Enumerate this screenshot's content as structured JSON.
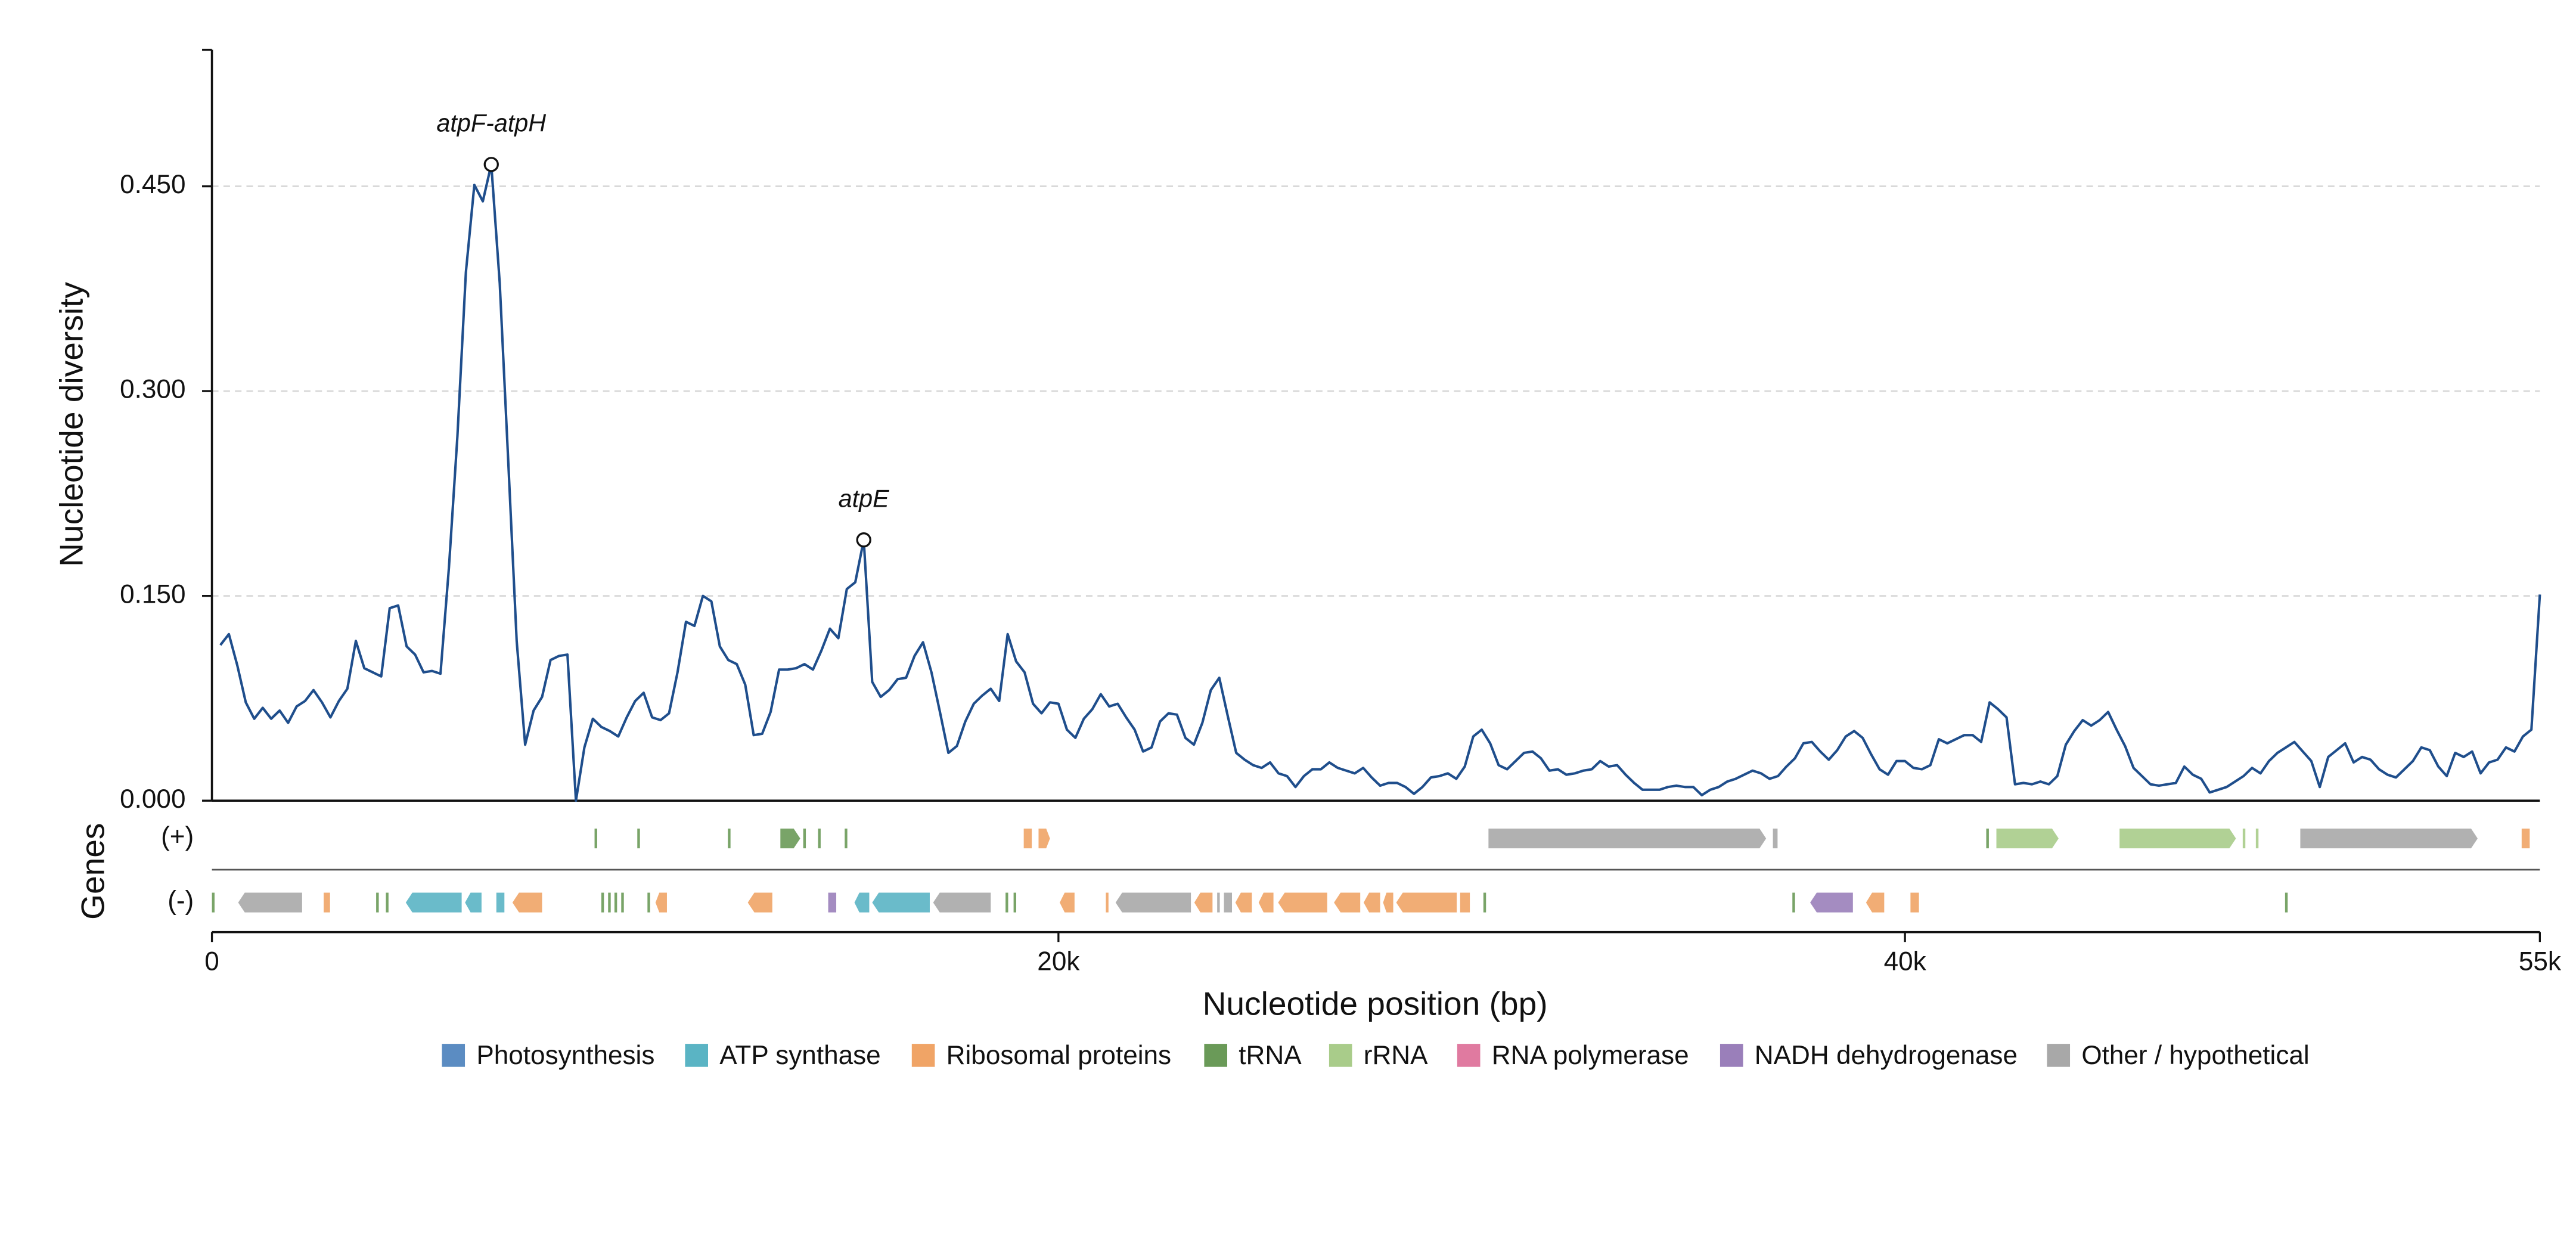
{
  "chart_data": {
    "type": "line",
    "ylabel": "Nucleotide diversity",
    "xlabel": "Nucleotide position (bp)",
    "track_label": "Genes",
    "color": "#1f4e8c",
    "xlim": [
      0,
      55000
    ],
    "ylim": [
      0,
      0.55
    ],
    "xticks": [
      0,
      {
        "value": 20000,
        "label": "20k"
      },
      {
        "value": 40000,
        "label": "40k"
      },
      {
        "value": 55000,
        "label": "55k"
      }
    ],
    "yticks": [
      {
        "value": 0,
        "label": "0.000"
      },
      {
        "value": 0.15,
        "label": "0.150"
      },
      {
        "value": 0.3,
        "label": "0.300"
      },
      {
        "value": 0.45,
        "label": "0.450"
      }
    ],
    "grid": true,
    "x": [
      200,
      400,
      600,
      800,
      1000,
      1200,
      1400,
      1600,
      1800,
      2000,
      2200,
      2400,
      2600,
      2800,
      3000,
      3200,
      3400,
      3600,
      3800,
      4000,
      4200,
      4400,
      4600,
      4800,
      5000,
      5200,
      5400,
      5600,
      5800,
      6000,
      6200,
      6400,
      6600,
      6800,
      7000,
      7200,
      7400,
      7600,
      7800,
      8000,
      8200,
      8400,
      8600,
      8800,
      9000,
      9200,
      9400,
      9600,
      9800,
      10000,
      10200,
      10400,
      10600,
      10800,
      11000,
      11200,
      11400,
      11600,
      11800,
      12000,
      12200,
      12400,
      12600,
      12800,
      13000,
      13200,
      13400,
      13600,
      13800,
      14000,
      14200,
      14400,
      14600,
      14800,
      15000,
      15200,
      15400,
      15600,
      15800,
      16000,
      16200,
      16400,
      16600,
      16800,
      17000,
      17200,
      17400,
      17600,
      17800,
      18000,
      18200,
      18400,
      18600,
      18800,
      19000,
      19200,
      19400,
      19600,
      19800,
      20000,
      20200,
      20400,
      20600,
      20800,
      21000,
      21200,
      21400,
      21600,
      21800,
      22000,
      22200,
      22400,
      22600,
      22800,
      23000,
      23200,
      23400,
      23600,
      23800,
      24000,
      24200,
      24400,
      24600,
      24800,
      25000,
      25200,
      25400,
      25600,
      25800,
      26000,
      26200,
      26400,
      26600,
      26800,
      27000,
      27200,
      27400,
      27600,
      27800,
      28000,
      28200,
      28400,
      28600,
      28800,
      29000,
      29200,
      29400,
      29600,
      29800,
      30000,
      30200,
      30400,
      30600,
      30800,
      31000,
      31200,
      31400,
      31600,
      31800,
      32000,
      32200,
      32400,
      32600,
      32800,
      33000,
      33200,
      33400,
      33600,
      33800,
      34000,
      34200,
      34400,
      34600,
      34800,
      35000,
      35200,
      35400,
      35600,
      35800,
      36000,
      36200,
      36400,
      36600,
      36800,
      37000,
      37200,
      37400,
      37600,
      37800,
      38000,
      38200,
      38400,
      38600,
      38800,
      39000,
      39200,
      39400,
      39600,
      39800,
      40000,
      40200,
      40400,
      40600,
      40800,
      41000,
      41200,
      41400,
      41600,
      41800,
      42000,
      42200,
      42400,
      42600,
      42800,
      43000,
      43200,
      43400,
      43600,
      43800,
      44000,
      44200,
      44400,
      44600,
      44800,
      45000,
      45200,
      45400,
      45600,
      45800,
      46000,
      46200,
      46400,
      46600,
      46800,
      47000,
      47200,
      47400,
      47600,
      47800,
      48000,
      48200,
      48400,
      48600,
      48800,
      49000,
      49200,
      49400,
      49600,
      49800,
      50000,
      50200,
      50400,
      50600,
      50800,
      51000,
      51200,
      51400,
      51600,
      51800,
      52000,
      52200,
      52400,
      52600,
      52800,
      53000,
      53200,
      53400,
      53600,
      53800,
      54000,
      54200,
      54400,
      54600,
      54800,
      55000
    ],
    "values": [
      0.114,
      0.122,
      0.099,
      0.072,
      0.06,
      0.068,
      0.06,
      0.066,
      0.057,
      0.069,
      0.073,
      0.081,
      0.072,
      0.061,
      0.073,
      0.082,
      0.117,
      0.097,
      0.094,
      0.091,
      0.141,
      0.143,
      0.113,
      0.107,
      0.094,
      0.095,
      0.093,
      0.171,
      0.267,
      0.387,
      0.451,
      0.439,
      0.466,
      0.379,
      0.249,
      0.117,
      0.041,
      0.066,
      0.076,
      0.103,
      0.106,
      0.107,
      0.0,
      0.039,
      0.06,
      0.054,
      0.051,
      0.047,
      0.061,
      0.073,
      0.079,
      0.061,
      0.059,
      0.064,
      0.094,
      0.131,
      0.128,
      0.15,
      0.146,
      0.113,
      0.103,
      0.1,
      0.085,
      0.048,
      0.049,
      0.065,
      0.096,
      0.096,
      0.097,
      0.1,
      0.096,
      0.11,
      0.126,
      0.119,
      0.155,
      0.16,
      0.191,
      0.087,
      0.076,
      0.081,
      0.089,
      0.09,
      0.106,
      0.116,
      0.094,
      0.065,
      0.035,
      0.04,
      0.058,
      0.071,
      0.077,
      0.082,
      0.073,
      0.122,
      0.102,
      0.094,
      0.071,
      0.064,
      0.072,
      0.071,
      0.052,
      0.046,
      0.06,
      0.067,
      0.078,
      0.069,
      0.071,
      0.061,
      0.052,
      0.036,
      0.039,
      0.058,
      0.064,
      0.063,
      0.046,
      0.041,
      0.057,
      0.081,
      0.09,
      0.062,
      0.035,
      0.03,
      0.026,
      0.024,
      0.028,
      0.02,
      0.018,
      0.01,
      0.018,
      0.023,
      0.023,
      0.028,
      0.024,
      0.022,
      0.02,
      0.024,
      0.017,
      0.011,
      0.013,
      0.013,
      0.01,
      0.005,
      0.01,
      0.017,
      0.018,
      0.02,
      0.016,
      0.025,
      0.047,
      0.052,
      0.042,
      0.026,
      0.023,
      0.029,
      0.035,
      0.036,
      0.031,
      0.022,
      0.023,
      0.019,
      0.02,
      0.022,
      0.023,
      0.029,
      0.025,
      0.026,
      0.019,
      0.013,
      0.008,
      0.008,
      0.008,
      0.01,
      0.011,
      0.01,
      0.01,
      0.004,
      0.008,
      0.01,
      0.014,
      0.016,
      0.019,
      0.022,
      0.02,
      0.016,
      0.018,
      0.025,
      0.031,
      0.042,
      0.043,
      0.036,
      0.03,
      0.037,
      0.047,
      0.051,
      0.046,
      0.034,
      0.023,
      0.019,
      0.029,
      0.029,
      0.024,
      0.023,
      0.026,
      0.045,
      0.042,
      0.045,
      0.048,
      0.048,
      0.043,
      0.072,
      0.067,
      0.061,
      0.012,
      0.013,
      0.012,
      0.014,
      0.012,
      0.018,
      0.041,
      0.051,
      0.059,
      0.055,
      0.059,
      0.065,
      0.052,
      0.04,
      0.024,
      0.018,
      0.012,
      0.011,
      0.012,
      0.013,
      0.025,
      0.019,
      0.016,
      0.006,
      0.008,
      0.01,
      0.014,
      0.018,
      0.024,
      0.02,
      0.029,
      0.035,
      0.039,
      0.043,
      0.036,
      0.029,
      0.01,
      0.032,
      0.037,
      0.042,
      0.028,
      0.032,
      0.03,
      0.023,
      0.019,
      0.017,
      0.023,
      0.029,
      0.039,
      0.037,
      0.025,
      0.018,
      0.035,
      0.032,
      0.036,
      0.02,
      0.028,
      0.03,
      0.039,
      0.036,
      0.047,
      0.052,
      0.151
    ],
    "annotations": [
      {
        "text": "atpF-atpH",
        "x": 6600,
        "y": 0.466
      },
      {
        "text": "atpE",
        "x": 15400,
        "y": 0.191
      }
    ],
    "strands": [
      "(+)",
      "(-)"
    ],
    "legend": [
      {
        "name": "Photosynthesis",
        "color": "#5b8cc2"
      },
      {
        "name": "ATP synthase",
        "color": "#5ab4c4"
      },
      {
        "name": "Ribosomal proteins",
        "color": "#f0a466"
      },
      {
        "name": "tRNA",
        "color": "#6a9a58"
      },
      {
        "name": "rRNA",
        "color": "#a9cc8a"
      },
      {
        "name": "RNA polymerase",
        "color": "#e07aa0"
      },
      {
        "name": "NADH dehydrogenase",
        "color": "#9a7fba"
      },
      {
        "name": "Other / hypothetical",
        "color": "#a8a8a8"
      }
    ],
    "genes": [
      {
        "start": 9040,
        "end": 9100,
        "strand": "(+)",
        "category": "tRNA"
      },
      {
        "start": 10050,
        "end": 10110,
        "strand": "(+)",
        "category": "tRNA"
      },
      {
        "start": 12190,
        "end": 12250,
        "strand": "(+)",
        "category": "tRNA"
      },
      {
        "start": 13430,
        "end": 13900,
        "strand": "(+)",
        "category": "tRNA"
      },
      {
        "start": 13970,
        "end": 14030,
        "strand": "(+)",
        "category": "tRNA"
      },
      {
        "start": 14320,
        "end": 14380,
        "strand": "(+)",
        "category": "tRNA"
      },
      {
        "start": 14950,
        "end": 15010,
        "strand": "(+)",
        "category": "tRNA"
      },
      {
        "start": 19180,
        "end": 19370,
        "strand": "(+)",
        "category": "Ribosomal proteins"
      },
      {
        "start": 19530,
        "end": 19800,
        "strand": "(+)",
        "category": "Ribosomal proteins"
      },
      {
        "start": 30160,
        "end": 36720,
        "strand": "(+)",
        "category": "Other / hypothetical"
      },
      {
        "start": 36880,
        "end": 36990,
        "strand": "(+)",
        "category": "Other / hypothetical"
      },
      {
        "start": 41920,
        "end": 41980,
        "strand": "(+)",
        "category": "tRNA"
      },
      {
        "start": 42160,
        "end": 43630,
        "strand": "(+)",
        "category": "rRNA"
      },
      {
        "start": 45070,
        "end": 47820,
        "strand": "(+)",
        "category": "rRNA"
      },
      {
        "start": 47980,
        "end": 48040,
        "strand": "(+)",
        "category": "rRNA"
      },
      {
        "start": 48290,
        "end": 48350,
        "strand": "(+)",
        "category": "rRNA"
      },
      {
        "start": 49340,
        "end": 53530,
        "strand": "(+)",
        "category": "Other / hypothetical"
      },
      {
        "start": 54570,
        "end": 54760,
        "strand": "(+)",
        "category": "Ribosomal proteins"
      },
      {
        "start": 0,
        "end": 60,
        "strand": "(-)",
        "category": "tRNA"
      },
      {
        "start": 620,
        "end": 2130,
        "strand": "(-)",
        "category": "Other / hypothetical"
      },
      {
        "start": 2640,
        "end": 2790,
        "strand": "(-)",
        "category": "Ribosomal proteins"
      },
      {
        "start": 3880,
        "end": 3940,
        "strand": "(-)",
        "category": "tRNA"
      },
      {
        "start": 4110,
        "end": 4170,
        "strand": "(-)",
        "category": "tRNA"
      },
      {
        "start": 4580,
        "end": 5900,
        "strand": "(-)",
        "category": "ATP synthase"
      },
      {
        "start": 5980,
        "end": 6370,
        "strand": "(-)",
        "category": "ATP synthase"
      },
      {
        "start": 6720,
        "end": 6910,
        "strand": "(-)",
        "category": "ATP synthase"
      },
      {
        "start": 7100,
        "end": 7800,
        "strand": "(-)",
        "category": "Ribosomal proteins"
      },
      {
        "start": 9200,
        "end": 9260,
        "strand": "(-)",
        "category": "tRNA"
      },
      {
        "start": 9360,
        "end": 9420,
        "strand": "(-)",
        "category": "tRNA"
      },
      {
        "start": 9510,
        "end": 9570,
        "strand": "(-)",
        "category": "tRNA"
      },
      {
        "start": 9670,
        "end": 9730,
        "strand": "(-)",
        "category": "tRNA"
      },
      {
        "start": 10290,
        "end": 10350,
        "strand": "(-)",
        "category": "tRNA"
      },
      {
        "start": 10480,
        "end": 10750,
        "strand": "(-)",
        "category": "Ribosomal proteins"
      },
      {
        "start": 12660,
        "end": 13240,
        "strand": "(-)",
        "category": "Ribosomal proteins"
      },
      {
        "start": 14560,
        "end": 14750,
        "strand": "(-)",
        "category": "NADH dehydrogenase"
      },
      {
        "start": 15180,
        "end": 15530,
        "strand": "(-)",
        "category": "ATP synthase"
      },
      {
        "start": 15600,
        "end": 16960,
        "strand": "(-)",
        "category": "ATP synthase"
      },
      {
        "start": 17040,
        "end": 18400,
        "strand": "(-)",
        "category": "Other / hypothetical"
      },
      {
        "start": 18750,
        "end": 18810,
        "strand": "(-)",
        "category": "tRNA"
      },
      {
        "start": 18940,
        "end": 19000,
        "strand": "(-)",
        "category": "tRNA"
      },
      {
        "start": 20030,
        "end": 20380,
        "strand": "(-)",
        "category": "Ribosomal proteins"
      },
      {
        "start": 21120,
        "end": 21180,
        "strand": "(-)",
        "category": "Ribosomal proteins"
      },
      {
        "start": 21350,
        "end": 23130,
        "strand": "(-)",
        "category": "Other / hypothetical"
      },
      {
        "start": 23210,
        "end": 23640,
        "strand": "(-)",
        "category": "Ribosomal proteins"
      },
      {
        "start": 23750,
        "end": 23810,
        "strand": "(-)",
        "category": "Other / hypothetical"
      },
      {
        "start": 23910,
        "end": 24100,
        "strand": "(-)",
        "category": "Other / hypothetical"
      },
      {
        "start": 24180,
        "end": 24570,
        "strand": "(-)",
        "category": "Ribosomal proteins"
      },
      {
        "start": 24730,
        "end": 25080,
        "strand": "(-)",
        "category": "Ribosomal proteins"
      },
      {
        "start": 25190,
        "end": 26350,
        "strand": "(-)",
        "category": "Ribosomal proteins"
      },
      {
        "start": 26510,
        "end": 27130,
        "strand": "(-)",
        "category": "Ribosomal proteins"
      },
      {
        "start": 27210,
        "end": 27600,
        "strand": "(-)",
        "category": "Ribosomal proteins"
      },
      {
        "start": 27670,
        "end": 27910,
        "strand": "(-)",
        "category": "Ribosomal proteins"
      },
      {
        "start": 27980,
        "end": 29410,
        "strand": "(-)",
        "category": "Ribosomal proteins"
      },
      {
        "start": 29490,
        "end": 29720,
        "strand": "(-)",
        "category": "Ribosomal proteins"
      },
      {
        "start": 30040,
        "end": 30100,
        "strand": "(-)",
        "category": "tRNA"
      },
      {
        "start": 37340,
        "end": 37400,
        "strand": "(-)",
        "category": "tRNA"
      },
      {
        "start": 37760,
        "end": 38770,
        "strand": "(-)",
        "category": "NADH dehydrogenase"
      },
      {
        "start": 39080,
        "end": 39510,
        "strand": "(-)",
        "category": "Ribosomal proteins"
      },
      {
        "start": 40130,
        "end": 40330,
        "strand": "(-)",
        "category": "Ribosomal proteins"
      },
      {
        "start": 48980,
        "end": 49040,
        "strand": "(-)",
        "category": "tRNA"
      }
    ]
  }
}
